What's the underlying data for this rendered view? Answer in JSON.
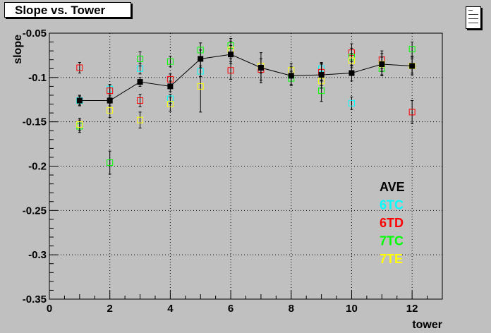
{
  "title": "Slope vs. Tower",
  "chart_data": {
    "type": "scatter",
    "title": "Slope vs. Tower",
    "xlabel": "tower",
    "ylabel": "slope",
    "xlim": [
      0,
      13
    ],
    "ylim": [
      -0.35,
      -0.05
    ],
    "xticks": [
      0,
      2,
      4,
      6,
      8,
      10,
      12
    ],
    "yticks": [
      -0.35,
      -0.3,
      -0.25,
      -0.2,
      -0.15,
      -0.1,
      -0.05
    ],
    "xtick_labels": [
      "0",
      "2",
      "4",
      "6",
      "8",
      "10",
      "12"
    ],
    "ytick_labels": [
      "-0.35",
      "-0.3",
      "-0.25",
      "-0.2",
      "-0.15",
      "-0.1",
      "-0.05"
    ],
    "grid": true,
    "legend_position": "bottom-right",
    "series": [
      {
        "name": "AVE",
        "color": "#000000",
        "marker": "filled-square",
        "line": true,
        "x": [
          1,
          2,
          3,
          4,
          5,
          6,
          7,
          8,
          9,
          10,
          11,
          12
        ],
        "y": [
          -0.126,
          -0.126,
          -0.105,
          -0.11,
          -0.079,
          -0.074,
          -0.089,
          -0.098,
          -0.097,
          -0.095,
          -0.085,
          -0.087
        ],
        "err": [
          0.006,
          0.006,
          0.005,
          0.006,
          0.01,
          0.01,
          0.017,
          0.01,
          0.012,
          0.009,
          0.012,
          0.01
        ]
      },
      {
        "name": "6TC",
        "color": "#00ffff",
        "marker": "open-square",
        "x": [
          1,
          2,
          3,
          4,
          5,
          9,
          10
        ],
        "y": [
          -0.126,
          -0.113,
          -0.09,
          -0.124,
          -0.093,
          -0.09,
          -0.129
        ],
        "err": [
          0.005,
          0.005,
          0.006,
          0.005,
          0.006,
          0.007,
          0.007
        ]
      },
      {
        "name": "6TD",
        "color": "#ff0000",
        "marker": "open-square",
        "x": [
          1,
          2,
          3,
          4,
          6,
          7,
          9,
          10,
          11,
          12
        ],
        "y": [
          -0.089,
          -0.115,
          -0.126,
          -0.102,
          -0.092,
          -0.091,
          -0.094,
          -0.072,
          -0.08,
          -0.139
        ],
        "err": [
          0.006,
          0.007,
          0.007,
          0.006,
          0.01,
          0.012,
          0.01,
          0.01,
          0.01,
          0.013
        ]
      },
      {
        "name": "7TC",
        "color": "#00ff00",
        "marker": "open-square",
        "x": [
          1,
          2,
          3,
          4,
          5,
          6,
          8,
          9,
          10,
          11,
          12
        ],
        "y": [
          -0.155,
          -0.196,
          -0.079,
          -0.082,
          -0.069,
          -0.064,
          -0.101,
          -0.115,
          -0.077,
          -0.09,
          -0.068
        ],
        "err": [
          0.007,
          0.013,
          0.008,
          0.006,
          0.008,
          0.008,
          0.008,
          0.012,
          0.01,
          0.008,
          0.008
        ]
      },
      {
        "name": "7TE",
        "color": "#ffff00",
        "marker": "open-square",
        "x": [
          1,
          2,
          3,
          4,
          5,
          6,
          7,
          8,
          9,
          10,
          11,
          12
        ],
        "y": [
          -0.153,
          -0.137,
          -0.148,
          -0.13,
          -0.11,
          -0.069,
          -0.087,
          -0.092,
          -0.104,
          -0.081,
          -0.085,
          -0.087
        ],
        "err": [
          0.007,
          0.008,
          0.009,
          0.008,
          0.029,
          0.01,
          0.008,
          0.008,
          0.008,
          0.008,
          0.008,
          0.008
        ]
      }
    ]
  }
}
